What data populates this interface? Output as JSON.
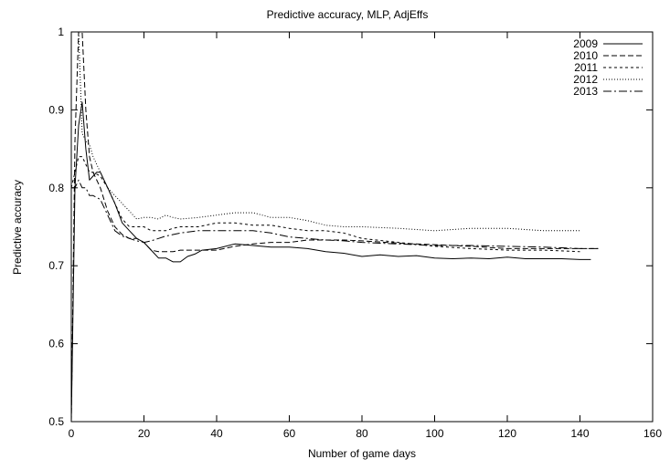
{
  "chart_data": {
    "type": "line",
    "title": "Predictive accuracy, MLP, AdjEffs",
    "xlabel": "Number of game days",
    "ylabel": "Predictive accuracy",
    "xlim": [
      0,
      160
    ],
    "ylim": [
      0.5,
      1.0
    ],
    "xticks": [
      0,
      20,
      40,
      60,
      80,
      100,
      120,
      140,
      160
    ],
    "yticks": [
      0.5,
      0.6,
      0.7,
      0.8,
      0.9,
      1.0
    ],
    "xtick_labels": [
      "0",
      "20",
      "40",
      "60",
      "80",
      "100",
      "120",
      "140",
      "160"
    ],
    "ytick_labels": [
      "0.5",
      "0.6",
      "0.7",
      "0.8",
      "0.9",
      "1"
    ],
    "grid": false,
    "legend_position": "top-right",
    "series": [
      {
        "name": "2009",
        "dash": "solid",
        "x": [
          0,
          1,
          2,
          3,
          4,
          5,
          6,
          7,
          8,
          10,
          12,
          14,
          16,
          18,
          20,
          22,
          24,
          26,
          28,
          30,
          32,
          34,
          36,
          40,
          45,
          50,
          55,
          60,
          65,
          70,
          75,
          80,
          85,
          90,
          95,
          100,
          105,
          110,
          115,
          120,
          125,
          130,
          135,
          140,
          143
        ],
        "y": [
          0.5,
          0.8,
          0.88,
          0.91,
          0.85,
          0.81,
          0.815,
          0.82,
          0.82,
          0.8,
          0.78,
          0.755,
          0.745,
          0.735,
          0.73,
          0.72,
          0.71,
          0.71,
          0.705,
          0.705,
          0.712,
          0.715,
          0.72,
          0.722,
          0.728,
          0.726,
          0.724,
          0.724,
          0.722,
          0.718,
          0.716,
          0.712,
          0.714,
          0.712,
          0.713,
          0.71,
          0.709,
          0.71,
          0.709,
          0.711,
          0.709,
          0.709,
          0.709,
          0.708,
          0.708
        ]
      },
      {
        "name": "2010",
        "dash": "dashed",
        "x": [
          0,
          1,
          2,
          3,
          4,
          5,
          6,
          8,
          10,
          12,
          14,
          16,
          18,
          20,
          22,
          24,
          26,
          28,
          30,
          35,
          40,
          45,
          50,
          55,
          60,
          65,
          70,
          75,
          80,
          90,
          100,
          110,
          120,
          130,
          140,
          145
        ],
        "y": [
          0.5,
          0.86,
          1.0,
          1.0,
          0.9,
          0.84,
          0.82,
          0.8,
          0.77,
          0.75,
          0.74,
          0.735,
          0.735,
          0.73,
          0.72,
          0.718,
          0.718,
          0.718,
          0.72,
          0.72,
          0.72,
          0.725,
          0.728,
          0.73,
          0.73,
          0.733,
          0.733,
          0.733,
          0.732,
          0.729,
          0.727,
          0.725,
          0.722,
          0.722,
          0.722,
          0.722
        ]
      },
      {
        "name": "2011",
        "dash": "dotted",
        "x": [
          0,
          1,
          2,
          3,
          4,
          5,
          6,
          8,
          10,
          12,
          14,
          16,
          18,
          20,
          22,
          24,
          26,
          28,
          30,
          35,
          40,
          45,
          50,
          55,
          60,
          65,
          70,
          75,
          80,
          90,
          100,
          110,
          120,
          130,
          140
        ],
        "y": [
          0.8,
          0.82,
          0.84,
          0.84,
          0.83,
          0.82,
          0.82,
          0.815,
          0.8,
          0.78,
          0.76,
          0.75,
          0.75,
          0.75,
          0.745,
          0.745,
          0.745,
          0.748,
          0.75,
          0.75,
          0.755,
          0.755,
          0.752,
          0.752,
          0.748,
          0.745,
          0.745,
          0.742,
          0.735,
          0.73,
          0.725,
          0.722,
          0.72,
          0.72,
          0.718
        ]
      },
      {
        "name": "2012",
        "dash": "dotted-fine",
        "x": [
          0,
          1,
          2,
          3,
          4,
          5,
          6,
          8,
          10,
          12,
          14,
          16,
          18,
          20,
          22,
          24,
          26,
          28,
          30,
          35,
          40,
          45,
          50,
          55,
          60,
          65,
          70,
          75,
          80,
          90,
          100,
          110,
          120,
          130,
          140
        ],
        "y": [
          1.0,
          1.0,
          1.0,
          0.87,
          0.86,
          0.855,
          0.84,
          0.82,
          0.8,
          0.79,
          0.78,
          0.77,
          0.76,
          0.762,
          0.762,
          0.76,
          0.765,
          0.762,
          0.76,
          0.762,
          0.765,
          0.768,
          0.768,
          0.762,
          0.762,
          0.758,
          0.752,
          0.75,
          0.75,
          0.748,
          0.745,
          0.748,
          0.748,
          0.745,
          0.745
        ]
      },
      {
        "name": "2013",
        "dash": "dash-dot",
        "x": [
          0,
          1,
          2,
          3,
          4,
          5,
          6,
          8,
          10,
          12,
          14,
          16,
          18,
          20,
          22,
          24,
          26,
          28,
          30,
          35,
          40,
          45,
          50,
          55,
          60,
          65,
          70,
          75,
          80,
          90,
          100,
          110,
          120,
          130,
          140,
          145
        ],
        "y": [
          0.8,
          0.8,
          0.81,
          0.8,
          0.8,
          0.79,
          0.79,
          0.785,
          0.765,
          0.745,
          0.738,
          0.735,
          0.732,
          0.73,
          0.732,
          0.735,
          0.738,
          0.74,
          0.742,
          0.745,
          0.745,
          0.745,
          0.745,
          0.742,
          0.737,
          0.735,
          0.733,
          0.732,
          0.73,
          0.728,
          0.726,
          0.726,
          0.725,
          0.724,
          0.722,
          0.722
        ]
      }
    ]
  }
}
